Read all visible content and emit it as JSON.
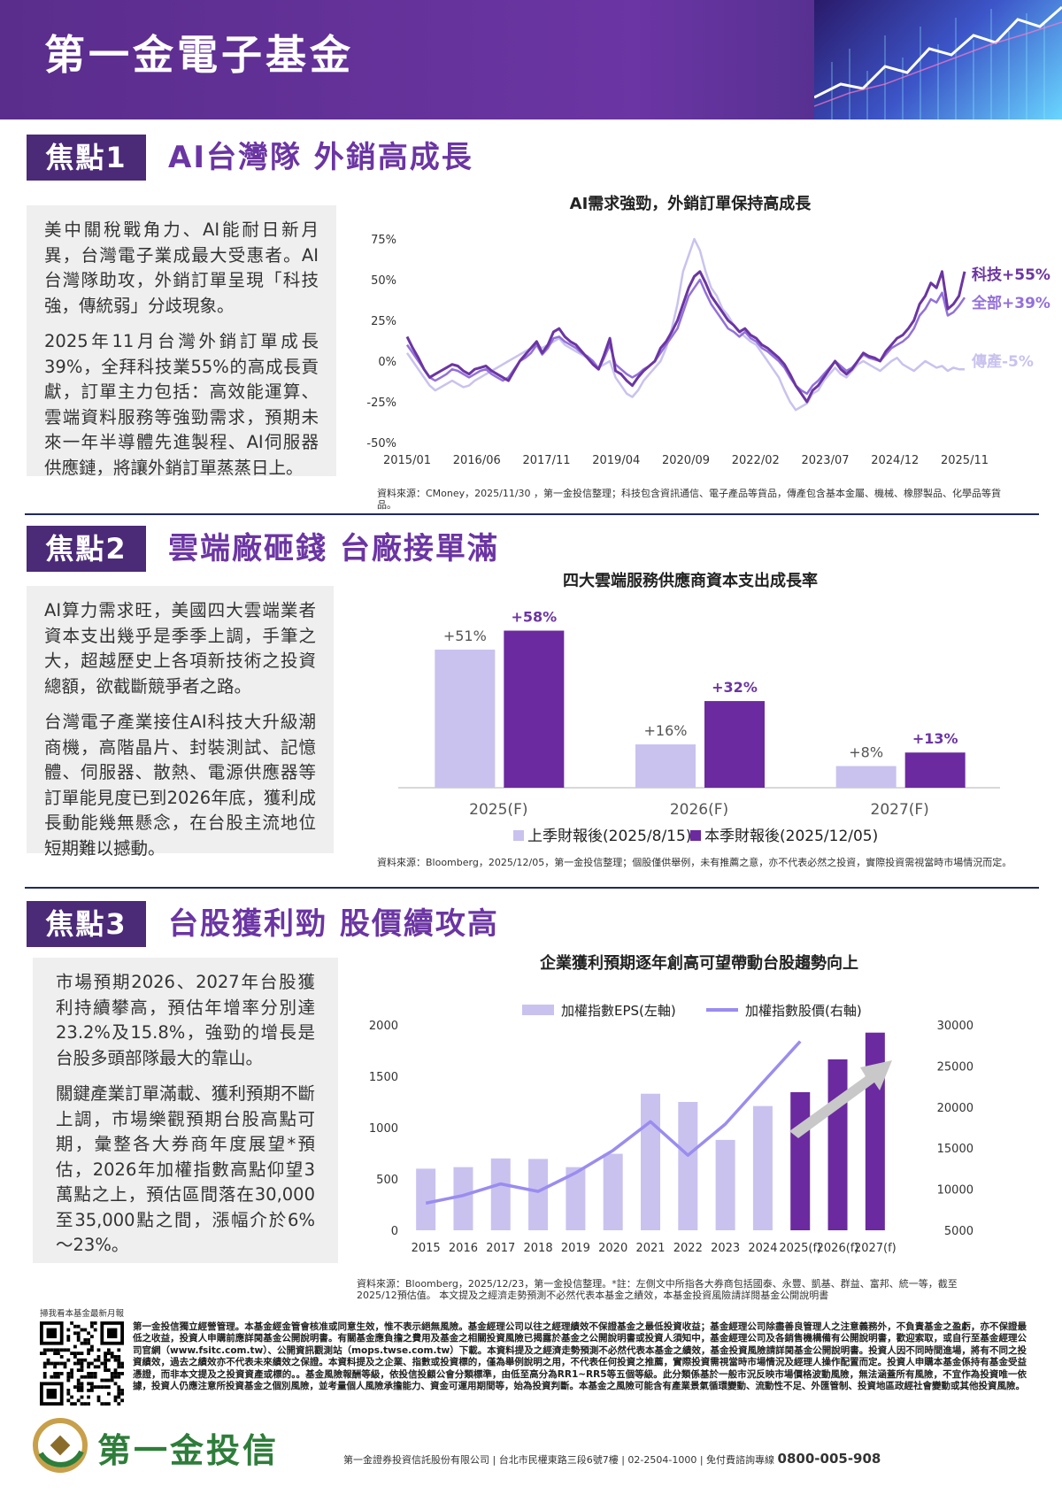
{
  "header": {
    "title": "第一金電子基金"
  },
  "focus1": {
    "tag": "焦點1",
    "title": "AI台灣隊 外銷高成長",
    "p1": "美中關稅戰角力、AI能耐日新月異，台灣電子業成最大受惠者。AI台灣隊助攻，外銷訂單呈現「科技強，傳統弱」分歧現象。",
    "p2": "2025年11月台灣外銷訂單成長39%，全拜科技業55%的高成長貢獻，訂單主力包括：高效能運算、雲端資料服務等強勁需求，預期未來一年半導體先進製程、AI伺服器供應鏈，將讓外銷訂單蒸蒸日上。",
    "chart_title": "AI需求強勁，外銷訂單保持高成長",
    "source": "資料來源：CMoney，2025/11/30 ，第一金投信整理；科技包含資訊通信、電子產品等貨品，傳產包含基本金屬、機械、橡膠製品、化學品等貨品。"
  },
  "focus2": {
    "tag": "焦點2",
    "title": "雲端廠砸錢 台廠接單滿",
    "p1": "AI算力需求旺，美國四大雲端業者資本支出幾乎是季季上調，手筆之大，超越歷史上各項新技術之投資總額，欲截斷競爭者之路。",
    "p2": "台灣電子產業接住AI科技大升級潮商機，高階晶片、封裝測試、記憶體、伺服器、散熱、電源供應器等訂單能見度已到2026年底，獲利成長動能幾無懸念，在台股主流地位短期難以撼動。",
    "chart_title": "四大雲端服務供應商資本支出成長率",
    "source": "資料來源：Bloomberg，2025/12/05，第一金投信整理；個股僅供舉例，未有推薦之意，亦不代表必然之投資，實際投資需視當時市場情況而定。"
  },
  "focus3": {
    "tag": "焦點3",
    "title": "台股獲利勁 股價續攻高",
    "p1": "市場預期2026、2027年台股獲利持續攀高，預估年增率分別達23.2%及15.8%，強勁的增長是台股多頭部隊最大的靠山。",
    "p2": "關鍵產業訂單滿載、獲利預期不斷上調，市場樂觀預期台股高點可期，彙整各大券商年度展望*預估，2026年加權指數高點仰望3萬點之上，預估區間落在30,000至35,000點之間，漲幅介於6%～23%。",
    "chart_title": "企業獲利預期逐年創高可望帶動台股趨勢向上",
    "source": "資料來源：Bloomberg，2025/12/23，第一金投信整理。*註：左側文中所指各大券商包括國泰、永豐、凱基、群益、富邦、統一等，截至2025/12預估值。 本文提及之經濟走勢預測不必然代表本基金之績效，本基金投資風險請詳閱基金公開說明書"
  },
  "chart_data": [
    {
      "type": "line",
      "title": "AI需求強勁，外銷訂單保持高成長",
      "yticks": [
        "75%",
        "50%",
        "25%",
        "0%",
        "-25%",
        "-50%"
      ],
      "ylim": [
        -50,
        75
      ],
      "xticks": [
        "2015/01",
        "2016/06",
        "2017/11",
        "2019/04",
        "2020/09",
        "2022/02",
        "2023/07",
        "2024/12",
        "2025/11"
      ],
      "series": [
        {
          "name": "科技+55%",
          "color": "#6b35a3",
          "values": [
            15,
            8,
            2,
            -5,
            -10,
            -8,
            -6,
            -4,
            -2,
            -3,
            -6,
            -8,
            -5,
            -4,
            -3,
            -6,
            -8,
            -10,
            -12,
            -6,
            0,
            4,
            8,
            12,
            5,
            10,
            18,
            20,
            15,
            12,
            10,
            6,
            2,
            -2,
            -5,
            4,
            14,
            -6,
            -8,
            -12,
            -15,
            -10,
            -6,
            -3,
            0,
            8,
            12,
            18,
            25,
            35,
            45,
            52,
            55,
            48,
            40,
            35,
            30,
            25,
            22,
            18,
            20,
            16,
            14,
            10,
            8,
            5,
            2,
            -2,
            -8,
            -15,
            -20,
            -25,
            -18,
            -15,
            -10,
            -5,
            0,
            -5,
            -8,
            -5,
            0,
            5,
            3,
            2,
            0,
            6,
            10,
            14,
            16,
            20,
            25,
            35,
            40,
            48,
            45,
            55,
            32,
            35,
            40,
            55
          ]
        },
        {
          "name": "全部+39%",
          "color": "#9370db",
          "values": [
            10,
            5,
            0,
            -5,
            -10,
            -12,
            -10,
            -8,
            -5,
            -6,
            -8,
            -10,
            -8,
            -6,
            -5,
            -8,
            -10,
            -12,
            -10,
            -5,
            0,
            2,
            5,
            10,
            4,
            8,
            14,
            15,
            12,
            10,
            8,
            5,
            3,
            0,
            -5,
            2,
            10,
            -2,
            -5,
            -8,
            -10,
            -8,
            -5,
            -3,
            0,
            5,
            10,
            15,
            20,
            30,
            40,
            45,
            50,
            42,
            35,
            30,
            25,
            20,
            18,
            15,
            18,
            14,
            12,
            8,
            6,
            3,
            0,
            -4,
            -10,
            -15,
            -18,
            -20,
            -15,
            -12,
            -8,
            -4,
            0,
            -3,
            -6,
            -4,
            0,
            4,
            2,
            1,
            0,
            4,
            8,
            10,
            12,
            15,
            20,
            28,
            32,
            38,
            36,
            42,
            28,
            30,
            34,
            39
          ]
        },
        {
          "name": "傳產-5%",
          "color": "#c9c2ef",
          "values": [
            5,
            0,
            -5,
            -10,
            -15,
            -18,
            -16,
            -14,
            -12,
            -14,
            -16,
            -15,
            -12,
            -10,
            -8,
            -6,
            -4,
            -2,
            0,
            2,
            4,
            6,
            8,
            10,
            8,
            10,
            12,
            14,
            10,
            8,
            6,
            4,
            2,
            0,
            -4,
            -2,
            0,
            -10,
            -15,
            -20,
            -22,
            -18,
            -12,
            -8,
            -4,
            0,
            8,
            20,
            35,
            55,
            65,
            75,
            68,
            55,
            45,
            40,
            32,
            28,
            22,
            18,
            15,
            12,
            10,
            5,
            0,
            -5,
            -10,
            -18,
            -25,
            -30,
            -28,
            -26,
            -20,
            -18,
            -12,
            -8,
            -4,
            -8,
            -10,
            -6,
            -2,
            0,
            -2,
            -4,
            -6,
            -3,
            0,
            2,
            -2,
            -4,
            -6,
            -3,
            0,
            -2,
            -4,
            -3,
            -6,
            -4,
            -5,
            -5
          ]
        }
      ]
    },
    {
      "type": "bar",
      "title": "四大雲端服務供應商資本支出成長率",
      "categories": [
        "2025(F)",
        "2026(F)",
        "2027(F)"
      ],
      "series": [
        {
          "name": "上季財報後(2025/8/15)",
          "color": "#c9c2ef",
          "values": [
            51,
            16,
            8
          ],
          "labels": [
            "+51%",
            "+16%",
            "+8%"
          ]
        },
        {
          "name": "本季財報後(2025/12/05)",
          "color": "#6b2a9f",
          "values": [
            58,
            32,
            13
          ],
          "labels": [
            "+58%",
            "+32%",
            "+13%"
          ]
        }
      ],
      "ylim": [
        0,
        70
      ]
    },
    {
      "type": "bar",
      "title": "企業獲利預期逐年創高可望帶動台股趨勢向上",
      "categories": [
        "2015",
        "2016",
        "2017",
        "2018",
        "2019",
        "2020",
        "2021",
        "2022",
        "2023",
        "2024",
        "2025(f)",
        "2026(f)",
        "2027(f)"
      ],
      "left_axis": {
        "ticks": [
          "2000",
          "1500",
          "1000",
          "500",
          "0"
        ],
        "ylim": [
          0,
          2000
        ]
      },
      "right_axis": {
        "ticks": [
          "30000",
          "25000",
          "20000",
          "15000",
          "10000",
          "5000"
        ],
        "ylim": [
          5000,
          30000
        ]
      },
      "legend": [
        "加權指數EPS(左軸)",
        "加權指數股價(右軸)"
      ],
      "bars": [
        600,
        615,
        700,
        695,
        615,
        745,
        1330,
        1250,
        880,
        1210,
        1345,
        1665,
        1925
      ],
      "bar_colors": [
        "#c9c2ef",
        "#c9c2ef",
        "#c9c2ef",
        "#c9c2ef",
        "#c9c2ef",
        "#c9c2ef",
        "#c9c2ef",
        "#c9c2ef",
        "#c9c2ef",
        "#c9c2ef",
        "#6b2a9f",
        "#6b2a9f",
        "#6b2a9f"
      ],
      "line": [
        8300,
        9250,
        10650,
        9730,
        11990,
        14730,
        18220,
        14140,
        17930,
        23000,
        28000,
        null,
        null
      ]
    }
  ],
  "qr_label": "掃我看本基金最新月報",
  "disclaimer": "第一金投信獨立經營管理。本基金經金管會核准或同意生效，惟不表示絕無風險。基金經理公司以往之經理績效不保證基金之最低投資收益；基金經理公司除盡善良管理人之注意義務外，不負責基金之盈虧，亦不保證最低之收益，投資人申購前應詳閱基金公開說明書。有關基金應負擔之費用及基金之相關投資風險已揭露於基金之公開說明書或投資人須知中，基金經理公司及各銷售機構備有公開說明書，歡迎索取，或自行至基金經理公司官網（www.fsitc.com.tw）、公開資訊觀測站（mops.twse.com.tw）下載。本資料提及之經濟走勢預測不必然代表本基金之績效，基金投資風險請詳閱基金公開說明書。投資人因不同時間進場，將有不同之投資績效，過去之績效亦不代表未來績效之保證。本資料提及之企業、指數或投資標的，僅為舉例說明之用，不代表任何投資之推薦，實際投資需視當時市場情況及經理人操作配置而定。投資人申購本基金係持有基金受益憑證，而非本文提及之投資資產或標的。。基金風險報酬等級，依投信投顧公會分類標準，由低至高分為RR1~RR5等五個等級。此分類係基於一般市況反映市場價格波動風險，無法涵蓋所有風險，不宜作為投資唯一依據，投資人仍應注意所投資基金之個別風險，並考量個人風險承擔能力、資金可運用期間等，始為投資判斷。本基金之風險可能含有產業景氣循環變動、流動性不足、外匯管制、投資地區政經社會變動或其他投資風險。",
  "logo": {
    "text": "第一金投信"
  },
  "footer": {
    "text": "第一金證券投資信託股份有限公司 | 台北市民權東路三段6號7樓 | 02-2504-1000 | 免付費諮詢專線",
    "hotline": "0800-005-908"
  }
}
